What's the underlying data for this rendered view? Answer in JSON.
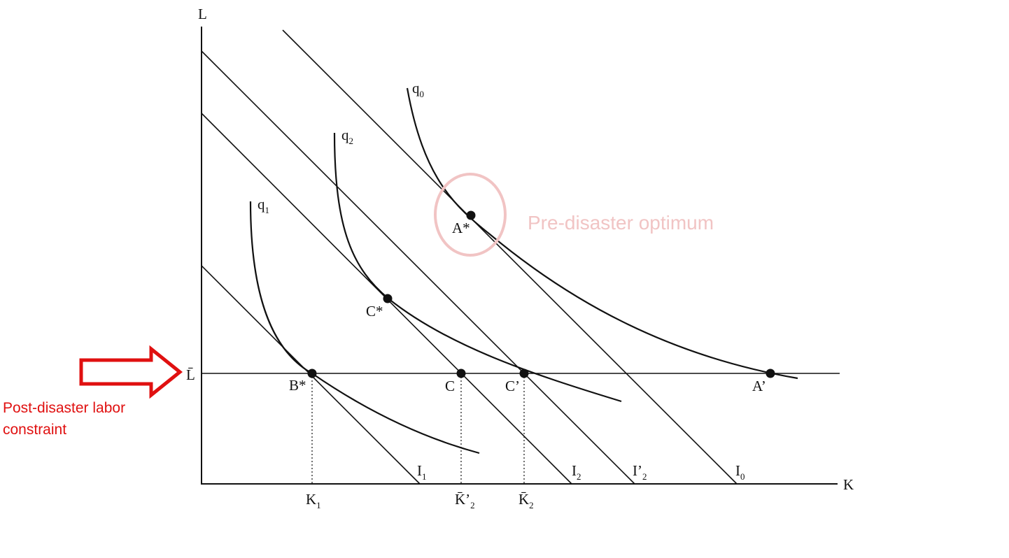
{
  "axes": {
    "y_label": "L",
    "x_label": "K",
    "lbar_label": "L̄"
  },
  "isoquants": [
    {
      "id": "q0",
      "base": "q",
      "sub": "0"
    },
    {
      "id": "q2",
      "base": "q",
      "sub": "2"
    },
    {
      "id": "q1",
      "base": "q",
      "sub": "1"
    }
  ],
  "isocosts": [
    {
      "id": "I1",
      "base": "I",
      "sub": "1"
    },
    {
      "id": "I2",
      "base": "I",
      "sub": "2"
    },
    {
      "id": "I2p",
      "base": "I’",
      "sub": "2"
    },
    {
      "id": "I0",
      "base": "I",
      "sub": "0"
    }
  ],
  "points": [
    {
      "id": "A*",
      "label": "A*"
    },
    {
      "id": "C*",
      "label": "C*"
    },
    {
      "id": "B*",
      "label": "B*"
    },
    {
      "id": "C",
      "label": "C"
    },
    {
      "id": "C'",
      "label": "C’"
    },
    {
      "id": "A'",
      "label": "A’"
    }
  ],
  "k_ticks": [
    {
      "id": "K1",
      "base": "K",
      "sub": "1"
    },
    {
      "id": "Kp2",
      "base": "K̄’",
      "sub": "2"
    },
    {
      "id": "K2",
      "base": "K̄",
      "sub": "2"
    }
  ],
  "annotations": {
    "pre_disaster": "Pre-disaster optimum",
    "post_disaster": "Post-disaster labor\nconstraint",
    "pre_color": "#f1c4c4",
    "post_color": "#e01010"
  }
}
